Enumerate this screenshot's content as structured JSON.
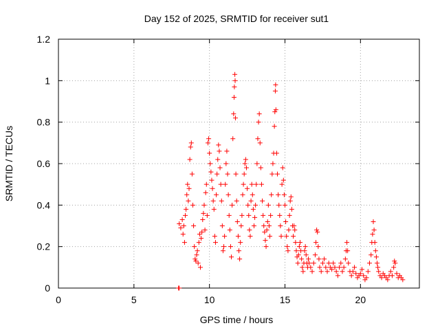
{
  "chart_data": {
    "type": "scatter",
    "title": "Day 152 of 2025, SRMTID for receiver sut1",
    "xlabel": "GPS time / hours",
    "ylabel": "SRMTID / TECUs",
    "xlim": [
      0,
      23.9
    ],
    "ylim": [
      0,
      1.2
    ],
    "x_ticks": [
      0,
      5,
      10,
      15,
      20
    ],
    "x_tick_labels": [
      "0",
      "5",
      "10",
      "15",
      "20"
    ],
    "y_ticks": [
      0,
      0.2,
      0.4,
      0.6,
      0.8,
      1.0,
      1.2
    ],
    "y_tick_labels": [
      "0",
      "0.2",
      "0.4",
      "0.6",
      "0.8",
      "1",
      "1.2"
    ],
    "grid": true,
    "marker": "plus",
    "color": "#ff0000",
    "series": [
      {
        "name": "SRMTID",
        "points": [
          [
            7.95,
            0.0
          ],
          [
            8.0,
            0.0
          ],
          [
            8.0,
            0.31
          ],
          [
            8.1,
            0.29
          ],
          [
            8.2,
            0.33
          ],
          [
            8.25,
            0.26
          ],
          [
            8.3,
            0.3
          ],
          [
            8.35,
            0.22
          ],
          [
            8.4,
            0.35
          ],
          [
            8.45,
            0.38
          ],
          [
            8.5,
            0.45
          ],
          [
            8.55,
            0.5
          ],
          [
            8.6,
            0.42
          ],
          [
            8.65,
            0.48
          ],
          [
            8.7,
            0.62
          ],
          [
            8.75,
            0.68
          ],
          [
            8.8,
            0.7
          ],
          [
            8.85,
            0.55
          ],
          [
            8.9,
            0.4
          ],
          [
            8.95,
            0.3
          ],
          [
            9.0,
            0.2
          ],
          [
            9.05,
            0.14
          ],
          [
            9.1,
            0.13
          ],
          [
            9.15,
            0.16
          ],
          [
            9.2,
            0.18
          ],
          [
            9.25,
            0.12
          ],
          [
            9.3,
            0.22
          ],
          [
            9.35,
            0.26
          ],
          [
            9.4,
            0.1
          ],
          [
            9.45,
            0.24
          ],
          [
            9.5,
            0.27
          ],
          [
            9.55,
            0.33
          ],
          [
            9.6,
            0.36
          ],
          [
            9.65,
            0.4
          ],
          [
            9.7,
            0.28
          ],
          [
            9.75,
            0.46
          ],
          [
            9.8,
            0.5
          ],
          [
            9.85,
            0.35
          ],
          [
            9.9,
            0.7
          ],
          [
            9.95,
            0.72
          ],
          [
            10.0,
            0.65
          ],
          [
            10.05,
            0.6
          ],
          [
            10.1,
            0.56
          ],
          [
            10.15,
            0.52
          ],
          [
            10.2,
            0.48
          ],
          [
            10.25,
            0.42
          ],
          [
            10.3,
            0.38
          ],
          [
            10.35,
            0.25
          ],
          [
            10.4,
            0.22
          ],
          [
            10.45,
            0.45
          ],
          [
            10.5,
            0.55
          ],
          [
            10.55,
            0.62
          ],
          [
            10.6,
            0.69
          ],
          [
            10.65,
            0.66
          ],
          [
            10.7,
            0.58
          ],
          [
            10.75,
            0.5
          ],
          [
            10.8,
            0.42
          ],
          [
            10.85,
            0.3
          ],
          [
            10.9,
            0.18
          ],
          [
            10.95,
            0.2
          ],
          [
            11.0,
            0.25
          ],
          [
            11.05,
            0.5
          ],
          [
            11.1,
            0.6
          ],
          [
            11.15,
            0.66
          ],
          [
            11.2,
            0.55
          ],
          [
            11.25,
            0.45
          ],
          [
            11.3,
            0.35
          ],
          [
            11.35,
            0.28
          ],
          [
            11.4,
            0.2
          ],
          [
            11.45,
            0.15
          ],
          [
            11.5,
            0.4
          ],
          [
            11.55,
            0.72
          ],
          [
            11.6,
            0.84
          ],
          [
            11.63,
            0.92
          ],
          [
            11.65,
            0.97
          ],
          [
            11.68,
            1.03
          ],
          [
            11.7,
            1.0
          ],
          [
            11.72,
            0.82
          ],
          [
            11.75,
            0.55
          ],
          [
            11.8,
            0.42
          ],
          [
            11.85,
            0.32
          ],
          [
            11.9,
            0.25
          ],
          [
            11.95,
            0.18
          ],
          [
            12.0,
            0.14
          ],
          [
            12.05,
            0.22
          ],
          [
            12.1,
            0.3
          ],
          [
            12.15,
            0.35
          ],
          [
            12.2,
            0.45
          ],
          [
            12.25,
            0.5
          ],
          [
            12.3,
            0.55
          ],
          [
            12.35,
            0.6
          ],
          [
            12.4,
            0.62
          ],
          [
            12.45,
            0.58
          ],
          [
            12.5,
            0.48
          ],
          [
            12.55,
            0.4
          ],
          [
            12.6,
            0.35
          ],
          [
            12.65,
            0.28
          ],
          [
            12.7,
            0.25
          ],
          [
            12.75,
            0.42
          ],
          [
            12.8,
            0.5
          ],
          [
            12.85,
            0.45
          ],
          [
            12.9,
            0.38
          ],
          [
            12.95,
            0.3
          ],
          [
            13.0,
            0.34
          ],
          [
            13.05,
            0.4
          ],
          [
            13.1,
            0.5
          ],
          [
            13.15,
            0.6
          ],
          [
            13.2,
            0.72
          ],
          [
            13.25,
            0.8
          ],
          [
            13.3,
            0.84
          ],
          [
            13.35,
            0.7
          ],
          [
            13.4,
            0.58
          ],
          [
            13.45,
            0.5
          ],
          [
            13.5,
            0.42
          ],
          [
            13.55,
            0.35
          ],
          [
            13.6,
            0.3
          ],
          [
            13.65,
            0.27
          ],
          [
            13.7,
            0.23
          ],
          [
            13.75,
            0.2
          ],
          [
            13.8,
            0.28
          ],
          [
            13.85,
            0.32
          ],
          [
            13.9,
            0.4
          ],
          [
            13.95,
            0.3
          ],
          [
            14.0,
            0.25
          ],
          [
            14.05,
            0.35
          ],
          [
            14.1,
            0.45
          ],
          [
            14.15,
            0.55
          ],
          [
            14.2,
            0.6
          ],
          [
            14.25,
            0.65
          ],
          [
            14.3,
            0.78
          ],
          [
            14.33,
            0.85
          ],
          [
            14.36,
            0.95
          ],
          [
            14.38,
            0.98
          ],
          [
            14.4,
            0.86
          ],
          [
            14.45,
            0.65
          ],
          [
            14.5,
            0.55
          ],
          [
            14.55,
            0.45
          ],
          [
            14.6,
            0.4
          ],
          [
            14.65,
            0.35
          ],
          [
            14.7,
            0.3
          ],
          [
            14.75,
            0.25
          ],
          [
            14.8,
            0.5
          ],
          [
            14.85,
            0.58
          ],
          [
            14.9,
            0.52
          ],
          [
            14.95,
            0.45
          ],
          [
            15.0,
            0.4
          ],
          [
            15.05,
            0.32
          ],
          [
            15.1,
            0.25
          ],
          [
            15.15,
            0.2
          ],
          [
            15.2,
            0.18
          ],
          [
            15.25,
            0.28
          ],
          [
            15.3,
            0.35
          ],
          [
            15.35,
            0.42
          ],
          [
            15.4,
            0.44
          ],
          [
            15.45,
            0.38
          ],
          [
            15.5,
            0.3
          ],
          [
            15.55,
            0.25
          ],
          [
            15.6,
            0.3
          ],
          [
            15.65,
            0.28
          ],
          [
            15.7,
            0.22
          ],
          [
            15.75,
            0.18
          ],
          [
            15.8,
            0.15
          ],
          [
            15.85,
            0.12
          ],
          [
            15.9,
            0.16
          ],
          [
            15.95,
            0.2
          ],
          [
            16.0,
            0.22
          ],
          [
            16.05,
            0.18
          ],
          [
            16.1,
            0.14
          ],
          [
            16.15,
            0.1
          ],
          [
            16.2,
            0.08
          ],
          [
            16.25,
            0.12
          ],
          [
            16.3,
            0.18
          ],
          [
            16.35,
            0.2
          ],
          [
            16.4,
            0.16
          ],
          [
            16.45,
            0.12
          ],
          [
            16.5,
            0.1
          ],
          [
            16.55,
            0.14
          ],
          [
            16.6,
            0.12
          ],
          [
            16.7,
            0.1
          ],
          [
            16.8,
            0.08
          ],
          [
            16.9,
            0.12
          ],
          [
            17.0,
            0.16
          ],
          [
            17.05,
            0.22
          ],
          [
            17.1,
            0.28
          ],
          [
            17.15,
            0.27
          ],
          [
            17.2,
            0.2
          ],
          [
            17.25,
            0.14
          ],
          [
            17.3,
            0.1
          ],
          [
            17.4,
            0.08
          ],
          [
            17.5,
            0.12
          ],
          [
            17.6,
            0.14
          ],
          [
            17.7,
            0.1
          ],
          [
            17.8,
            0.08
          ],
          [
            17.9,
            0.12
          ],
          [
            18.0,
            0.1
          ],
          [
            18.1,
            0.09
          ],
          [
            18.2,
            0.12
          ],
          [
            18.3,
            0.1
          ],
          [
            18.4,
            0.08
          ],
          [
            18.5,
            0.06
          ],
          [
            18.6,
            0.1
          ],
          [
            18.7,
            0.12
          ],
          [
            18.8,
            0.08
          ],
          [
            18.9,
            0.1
          ],
          [
            19.0,
            0.14
          ],
          [
            19.05,
            0.18
          ],
          [
            19.1,
            0.22
          ],
          [
            19.15,
            0.18
          ],
          [
            19.2,
            0.12
          ],
          [
            19.3,
            0.08
          ],
          [
            19.4,
            0.06
          ],
          [
            19.5,
            0.08
          ],
          [
            19.6,
            0.1
          ],
          [
            19.7,
            0.07
          ],
          [
            19.8,
            0.05
          ],
          [
            19.9,
            0.06
          ],
          [
            20.0,
            0.07
          ],
          [
            20.1,
            0.09
          ],
          [
            20.2,
            0.06
          ],
          [
            20.3,
            0.04
          ],
          [
            20.4,
            0.05
          ],
          [
            20.5,
            0.08
          ],
          [
            20.6,
            0.12
          ],
          [
            20.7,
            0.16
          ],
          [
            20.75,
            0.22
          ],
          [
            20.8,
            0.26
          ],
          [
            20.85,
            0.32
          ],
          [
            20.9,
            0.28
          ],
          [
            20.95,
            0.22
          ],
          [
            21.0,
            0.18
          ],
          [
            21.05,
            0.15
          ],
          [
            21.1,
            0.12
          ],
          [
            21.15,
            0.1
          ],
          [
            21.2,
            0.08
          ],
          [
            21.3,
            0.06
          ],
          [
            21.4,
            0.05
          ],
          [
            21.5,
            0.07
          ],
          [
            21.6,
            0.06
          ],
          [
            21.7,
            0.05
          ],
          [
            21.8,
            0.04
          ],
          [
            21.9,
            0.06
          ],
          [
            22.0,
            0.08
          ],
          [
            22.1,
            0.06
          ],
          [
            22.2,
            0.1
          ],
          [
            22.25,
            0.13
          ],
          [
            22.3,
            0.12
          ],
          [
            22.4,
            0.07
          ],
          [
            22.5,
            0.05
          ],
          [
            22.6,
            0.06
          ],
          [
            22.7,
            0.05
          ],
          [
            22.8,
            0.04
          ]
        ]
      }
    ]
  }
}
